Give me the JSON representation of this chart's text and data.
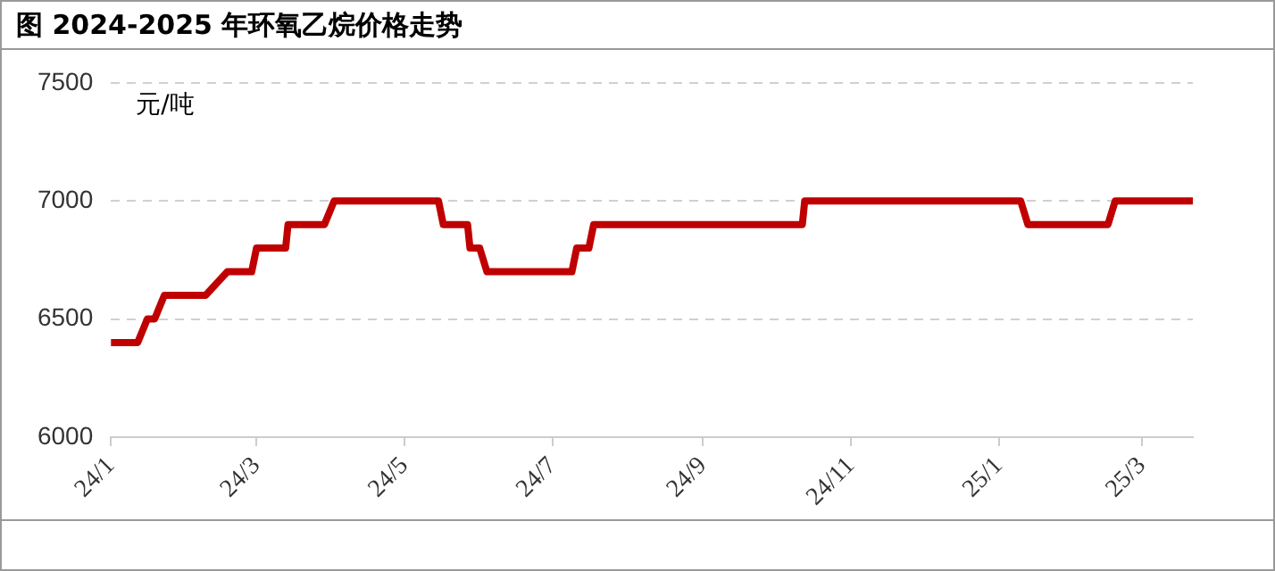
{
  "chart_data": {
    "type": "line",
    "title": "图 2024-2025 年环氧乙烷价格走势",
    "ylabel": "元/吨",
    "x": [
      "2024-01-01",
      "2024-01-12",
      "2024-01-16",
      "2024-01-19",
      "2024-01-23",
      "2024-02-09",
      "2024-02-18",
      "2024-02-28",
      "2024-03-01",
      "2024-03-13",
      "2024-03-14",
      "2024-03-29",
      "2024-04-02",
      "2024-05-15",
      "2024-05-17",
      "2024-05-27",
      "2024-05-28",
      "2024-06-01",
      "2024-06-04",
      "2024-07-09",
      "2024-07-11",
      "2024-07-16",
      "2024-07-18",
      "2024-10-12",
      "2024-10-13",
      "2025-01-10",
      "2025-01-13",
      "2025-02-15",
      "2025-02-18",
      "2025-03-22"
    ],
    "series": [
      {
        "color": "#c00000",
        "values": [
          6400,
          6400,
          6500,
          6500,
          6600,
          6600,
          6700,
          6700,
          6800,
          6800,
          6900,
          6900,
          7000,
          7000,
          6900,
          6900,
          6800,
          6800,
          6700,
          6700,
          6800,
          6800,
          6900,
          6900,
          7000,
          7000,
          6900,
          6900,
          7000,
          7000
        ]
      }
    ],
    "xlim": [
      "2024-01-01",
      "2025-03-22"
    ],
    "xticks": [
      {
        "value": "2024-01-01",
        "label": "24/1"
      },
      {
        "value": "2024-03-01",
        "label": "24/3"
      },
      {
        "value": "2024-05-01",
        "label": "24/5"
      },
      {
        "value": "2024-07-01",
        "label": "24/7"
      },
      {
        "value": "2024-09-01",
        "label": "24/9"
      },
      {
        "value": "2024-11-01",
        "label": "24/11"
      },
      {
        "value": "2025-01-01",
        "label": "25/1"
      },
      {
        "value": "2025-03-01",
        "label": "25/3"
      }
    ],
    "ylim": [
      6000,
      7500
    ],
    "yticks": [
      6000,
      6500,
      7000,
      7500
    ],
    "grid": "y",
    "legend": false,
    "marker": "none",
    "line_style": "solid"
  }
}
